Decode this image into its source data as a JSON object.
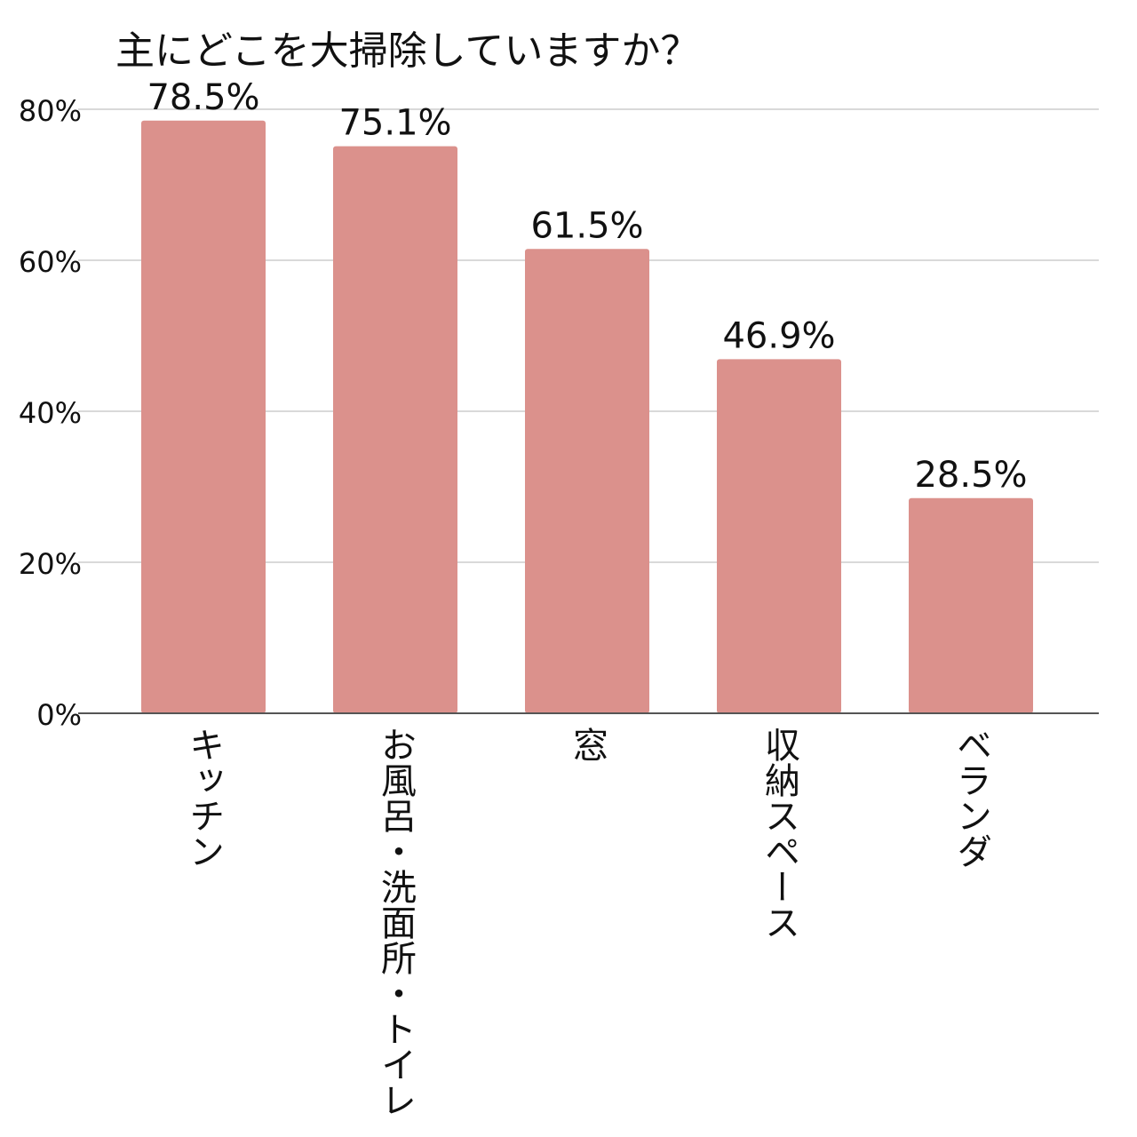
{
  "chart_data": {
    "type": "bar",
    "title": "主にどこを大掃除していますか？",
    "categories": [
      "キッチン",
      "お風呂・洗面所・トイレ",
      "窓",
      "収納スペース",
      "ベランダ"
    ],
    "values": [
      78.5,
      75.1,
      61.5,
      46.9,
      28.5
    ],
    "value_labels": [
      "78.5%",
      "75.1%",
      "61.5%",
      "46.9%",
      "28.5%"
    ],
    "color": "#db918c",
    "ylim": [
      0,
      80
    ],
    "yticks": [
      {
        "value": 0,
        "label": "0%"
      },
      {
        "value": 20,
        "label": "20%"
      },
      {
        "value": 40,
        "label": "40%"
      },
      {
        "value": 60,
        "label": "60%"
      },
      {
        "value": 80,
        "label": "80%"
      }
    ],
    "grid": true
  }
}
